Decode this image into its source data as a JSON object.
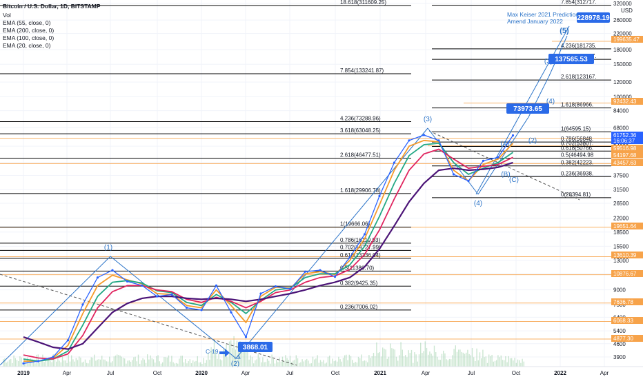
{
  "header": {
    "title": "Bitcoin / U.S. Dollar, 1D, BITSTAMP",
    "indicators": [
      "Vol",
      "EMA (55, close, 0)",
      "EMA (200, close, 0)",
      "EMA (100, close, 0)",
      "EMA (20, close, 0)"
    ]
  },
  "colors": {
    "fib_line": "#000000",
    "price": "#2962ff",
    "ema20": "#f59b2b",
    "ema55": "#22a884",
    "ema100": "#e0245e",
    "ema200": "#4b1477",
    "volume": "#8bc79a",
    "wave": "#2a73c8",
    "hline": "#f7a34a",
    "callout": "#2a6ae8"
  },
  "chart_data": {
    "type": "line",
    "title": "Bitcoin / U.S. Dollar, 1D, BITSTAMP",
    "y_scale": "log",
    "y_unit": "USD",
    "ylim": [
      3500,
      320000
    ],
    "x_ticks": [
      "2019",
      "Apr",
      "Jul",
      "Oct",
      "2020",
      "Apr",
      "Jul",
      "Oct",
      "2021",
      "Apr",
      "Jul",
      "Oct",
      "2022",
      "Apr"
    ],
    "y_ticks": [
      320000,
      260000,
      220000,
      180000,
      150000,
      120000,
      100000,
      84000,
      68000,
      54000,
      44000,
      37500,
      31500,
      26500,
      22000,
      18500,
      15500,
      13000,
      11000,
      9000,
      7500,
      6400,
      5400,
      4600,
      3900
    ],
    "price_series": {
      "x": [
        "2019-01",
        "2019-02",
        "2019-03",
        "2019-04",
        "2019-05",
        "2019-06",
        "2019-07",
        "2019-08",
        "2019-09",
        "2019-10",
        "2019-11",
        "2019-12",
        "2020-01",
        "2020-02",
        "2020-03",
        "2020-04",
        "2020-05",
        "2020-06",
        "2020-07",
        "2020-08",
        "2020-09",
        "2020-10",
        "2020-11",
        "2020-12",
        "2021-01",
        "2021-02",
        "2021-03",
        "2021-04",
        "2021-05",
        "2021-06",
        "2021-07",
        "2021-08",
        "2021-09",
        "2021-10"
      ],
      "close": [
        3600,
        3700,
        3900,
        4800,
        7500,
        10500,
        11500,
        10000,
        9500,
        8300,
        8500,
        7200,
        7000,
        9500,
        6800,
        5000,
        8600,
        9400,
        9100,
        11300,
        11500,
        10600,
        13500,
        18000,
        29000,
        44000,
        58000,
        62000,
        58000,
        38000,
        35000,
        45000,
        47000,
        61752
      ]
    },
    "ema_series": [
      {
        "name": "EMA (20, close, 0)",
        "values": [
          3700,
          3700,
          3850,
          4500,
          6700,
          9500,
          10800,
          10200,
          9700,
          8600,
          8500,
          7400,
          7200,
          9000,
          7400,
          6000,
          8300,
          9300,
          9200,
          11000,
          11300,
          10900,
          13000,
          17000,
          26000,
          40000,
          54000,
          58000,
          57000,
          40000,
          35000,
          43000,
          46000,
          56000
        ]
      },
      {
        "name": "EMA (55, close, 0)",
        "values": [
          3800,
          3700,
          3800,
          4200,
          5800,
          8300,
          9900,
          10100,
          9800,
          8900,
          8700,
          7700,
          7400,
          8500,
          7700,
          6700,
          7900,
          9000,
          9200,
          10500,
          11000,
          11000,
          12300,
          15500,
          22500,
          34000,
          48000,
          55000,
          56000,
          44000,
          38000,
          41000,
          44000,
          50000
        ]
      },
      {
        "name": "EMA (100, close, 0)",
        "values": [
          4000,
          3850,
          3800,
          4050,
          5100,
          7200,
          8800,
          9500,
          9500,
          9000,
          8800,
          8000,
          7700,
          8200,
          7800,
          7200,
          7800,
          8700,
          9000,
          9900,
          10500,
          10700,
          11600,
          14000,
          19000,
          28000,
          40000,
          49000,
          52000,
          46000,
          41000,
          42000,
          43000,
          47000
        ]
      },
      {
        "name": "EMA (200, close, 0)",
        "values": [
          5000,
          4700,
          4400,
          4300,
          4600,
          5600,
          6800,
          7600,
          8100,
          8300,
          8300,
          8100,
          8000,
          8100,
          8000,
          7800,
          8000,
          8300,
          8600,
          9000,
          9500,
          9900,
          10500,
          12000,
          15000,
          20000,
          27000,
          34000,
          40000,
          41000,
          40000,
          40500,
          41500,
          44000
        ]
      }
    ],
    "fib_left": [
      "18.618(311609.25)",
      "7.854(133241.87)",
      "4.236(73288.96)",
      "3.618(63048.25)",
      "2.618(46477.51)",
      "1.618(29906.78)",
      "1(19666.06)",
      "0.786(16119.93)",
      "0.702(14727.99)",
      "0.618(13336.04)",
      "0.5(11380.70)",
      "0.382(9425.35)",
      "0.236(7006.02)"
    ],
    "fib_right": [
      "7.854(312717.",
      "4.236(181735.",
      "3.618(159367.",
      "2.618(123167.",
      "1.618(86966.",
      "1(64595.15)",
      "0.786(56848.",
      "0.702(53807.",
      "0.618(50766.",
      "0.5(46494.98",
      "0.382(42223.",
      "0.236(36938.",
      "0(28394.81)"
    ],
    "price_labels": [
      {
        "text": "USD",
        "bg": "#ffffff",
        "fg": "#131722"
      },
      {
        "text": "199635.47",
        "bg": "#f7a34a",
        "fg": "#ffffff"
      },
      {
        "text": "92432.43",
        "bg": "#f7a34a",
        "fg": "#ffffff"
      },
      {
        "text": "61752.36",
        "bg": "#2962ff",
        "fg": "#ffffff"
      },
      {
        "text": "16:06:37",
        "bg": "#2962ff",
        "fg": "#ffffff"
      },
      {
        "text": "59516.98",
        "bg": "#f7a34a",
        "fg": "#ffffff"
      },
      {
        "text": "54197.68",
        "bg": "#f7a34a",
        "fg": "#ffffff"
      },
      {
        "text": "43457.63",
        "bg": "#f7a34a",
        "fg": "#ffffff"
      },
      {
        "text": "19651.64",
        "bg": "#f7a34a",
        "fg": "#ffffff"
      },
      {
        "text": "13610.39",
        "bg": "#f7a34a",
        "fg": "#ffffff"
      },
      {
        "text": "10876.67",
        "bg": "#f7a34a",
        "fg": "#ffffff"
      },
      {
        "text": "7636.78",
        "bg": "#f7a34a",
        "fg": "#ffffff"
      },
      {
        "text": "6068.33",
        "bg": "#f7a34a",
        "fg": "#ffffff"
      },
      {
        "text": "4877.30",
        "bg": "#f7a34a",
        "fg": "#ffffff"
      }
    ],
    "callouts": [
      "3868.01",
      "73973.65",
      "137565.53",
      "228978.19"
    ],
    "wave_labels": [
      "(1)",
      "(2)",
      "(3)",
      "(4)",
      "(A)",
      "(B)",
      "(C)",
      "(1)",
      "(2)",
      "(3)",
      "(4)",
      "(5)"
    ],
    "annotations": [
      "Max Keiser 2021 Prediction",
      "Amend January 2022",
      "C-19"
    ]
  }
}
